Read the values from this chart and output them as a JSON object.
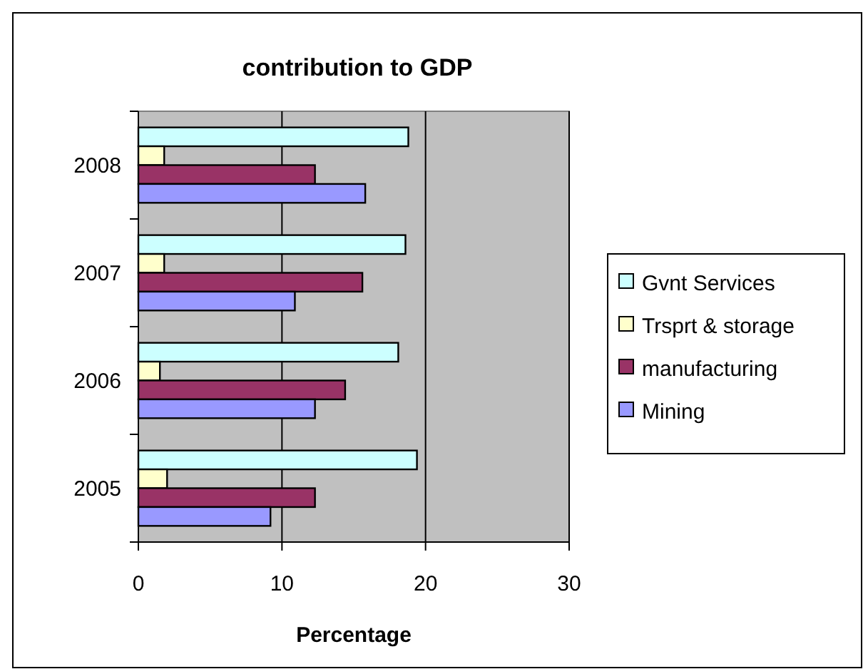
{
  "chart_data": {
    "type": "bar",
    "orientation": "horizontal",
    "title": "contribution to GDP",
    "xlabel": "Percentage",
    "categories": [
      "2008",
      "2007",
      "2006",
      "2005"
    ],
    "series": [
      {
        "name": "Gvnt Services",
        "color": "#ccffff",
        "values": [
          18.8,
          18.6,
          18.1,
          19.4
        ]
      },
      {
        "name": "Trsprt & storage",
        "color": "#ffffcc",
        "values": [
          1.8,
          1.8,
          1.5,
          2.0
        ]
      },
      {
        "name": "manufacturing",
        "color": "#993366",
        "values": [
          12.3,
          15.6,
          14.4,
          12.3
        ]
      },
      {
        "name": "Mining",
        "color": "#9999ff",
        "values": [
          15.8,
          10.9,
          12.3,
          9.2
        ]
      }
    ],
    "xlim": [
      0,
      30
    ],
    "xticks": [
      0,
      10,
      20,
      30
    ],
    "grid": "x",
    "legend": "right"
  }
}
